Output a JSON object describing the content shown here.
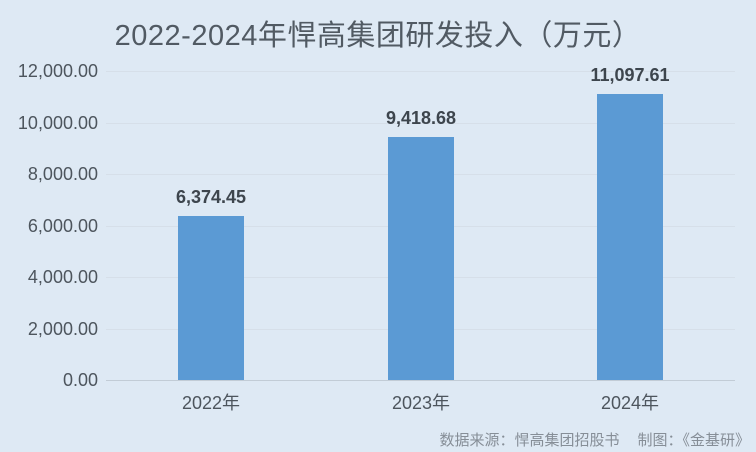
{
  "page": {
    "background_color": "#dee9f4"
  },
  "chart_data": {
    "type": "bar",
    "title": "2022-2024年悍高集团研发投入（万元）",
    "categories": [
      "2022年",
      "2023年",
      "2024年"
    ],
    "values": [
      6374.45,
      9418.68,
      11097.61
    ],
    "value_labels": [
      "6,374.45",
      "9,418.68",
      "11,097.61"
    ],
    "xlabel": "",
    "ylabel": "",
    "ylim": [
      0,
      12000
    ],
    "ytick_interval": 2000,
    "ytick_labels": [
      "0.00",
      "2,000.00",
      "4,000.00",
      "6,000.00",
      "8,000.00",
      "10,000.00",
      "12,000.00"
    ],
    "grid": true,
    "legend": "none",
    "bar_color": "#5b9ad4",
    "background_color": "#dee9f4",
    "title_color": "#515a63",
    "label_color": "#4d555d"
  },
  "footer": {
    "source_label": "数据来源：悍高集团招股书",
    "credit_label": "制图：《金基研》"
  }
}
